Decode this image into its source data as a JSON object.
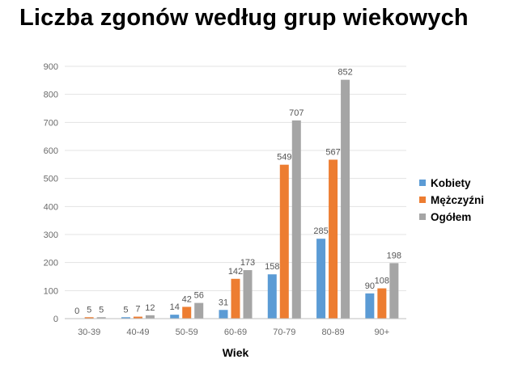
{
  "chart_data": {
    "type": "bar",
    "title": "Liczba zgonów według grup wiekowych",
    "xlabel": "Wiek",
    "ylabel": "",
    "ylim": [
      0,
      900
    ],
    "yticks": [
      0,
      100,
      200,
      300,
      400,
      500,
      600,
      700,
      800,
      900
    ],
    "grid": true,
    "legend_position": "right",
    "categories": [
      "30-39",
      "40-49",
      "50-59",
      "60-69",
      "70-79",
      "80-89",
      "90+"
    ],
    "series": [
      {
        "name": "Kobiety",
        "color": "#5b9bd5",
        "values": [
          0,
          5,
          14,
          31,
          158,
          285,
          90
        ]
      },
      {
        "name": "Mężczyźni",
        "color": "#ed7d31",
        "values": [
          5,
          7,
          42,
          142,
          549,
          567,
          108
        ]
      },
      {
        "name": "Ogółem",
        "color": "#a5a5a5",
        "values": [
          5,
          12,
          56,
          173,
          707,
          852,
          198
        ]
      }
    ]
  }
}
